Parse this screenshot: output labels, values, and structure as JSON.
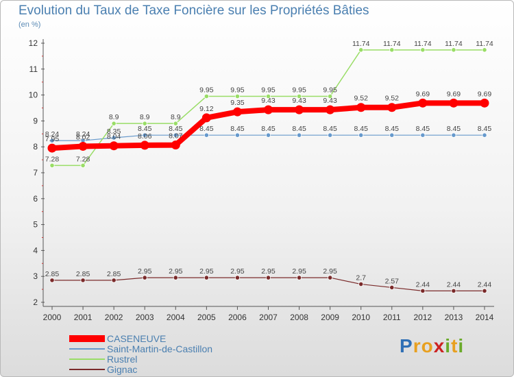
{
  "title": "Evolution du Taux de Taxe Foncière sur les Propriétés Bâties",
  "unit_label": "(en %)",
  "logo": {
    "letters": [
      {
        "ch": "P",
        "color": "#2f6fb5"
      },
      {
        "ch": "r",
        "color": "#e8a020"
      },
      {
        "ch": "o",
        "color": "#e8a020"
      },
      {
        "ch": "x",
        "color": "#cc2222"
      },
      {
        "ch": "i",
        "color": "#6aaa2a"
      },
      {
        "ch": "t",
        "color": "#e8a020"
      },
      {
        "ch": "i",
        "color": "#6aaa2a"
      }
    ]
  },
  "chart_data": {
    "type": "line",
    "title": "Evolution du Taux de Taxe Foncière sur les Propriétés Bâties",
    "ylabel": "(en %)",
    "xlabel": "",
    "x": [
      "2000",
      "2001",
      "2002",
      "2003",
      "2004",
      "2005",
      "2006",
      "2007",
      "2008",
      "2009",
      "2010",
      "2011",
      "2012",
      "2013",
      "2014"
    ],
    "ylim": [
      2,
      12
    ],
    "yticks": [
      "2",
      "3",
      "4",
      "5",
      "6",
      "7",
      "8",
      "9",
      "10",
      "11",
      "12"
    ],
    "grid": false,
    "legend": "bottom-left",
    "series": [
      {
        "name": "CASENEUVE",
        "color": "#ff0000",
        "width": 8,
        "values": [
          7.95,
          8.02,
          8.04,
          8.06,
          8.07,
          9.12,
          9.35,
          9.43,
          9.43,
          9.43,
          9.52,
          9.52,
          9.69,
          9.69,
          9.69
        ],
        "labels": [
          "7.95",
          "8.02",
          "8.04",
          "8.06",
          "8.07",
          "9.12",
          "9.35",
          "9.43",
          "9.43",
          "9.43",
          "9.52",
          "9.52",
          "9.69",
          "9.69",
          "9.69"
        ]
      },
      {
        "name": "Saint-Martin-de-Castillon",
        "color": "#6699cc",
        "width": 1.2,
        "values": [
          8.24,
          8.24,
          8.35,
          8.45,
          8.45,
          8.45,
          8.45,
          8.45,
          8.45,
          8.45,
          8.45,
          8.45,
          8.45,
          8.45,
          8.45
        ],
        "labels": [
          "8.24",
          "8.24",
          "8.35",
          "8.45",
          "8.45",
          "8.45",
          "8.45",
          "8.45",
          "8.45",
          "8.45",
          "8.45",
          "8.45",
          "8.45",
          "8.45",
          "8.45"
        ]
      },
      {
        "name": "Rustrel",
        "color": "#99dd66",
        "width": 1.5,
        "values": [
          7.28,
          7.28,
          8.9,
          8.9,
          8.9,
          9.95,
          9.95,
          9.95,
          9.95,
          9.95,
          11.74,
          11.74,
          11.74,
          11.74,
          11.74
        ],
        "labels": [
          "7.28",
          "7.28",
          "8.9",
          "8.9",
          "8.9",
          "9.95",
          "9.95",
          "9.95",
          "9.95",
          "9.95",
          "11.74",
          "11.74",
          "11.74",
          "11.74",
          "11.74"
        ]
      },
      {
        "name": "Gignac",
        "color": "#7a2a2a",
        "width": 1.2,
        "values": [
          2.85,
          2.85,
          2.85,
          2.95,
          2.95,
          2.95,
          2.95,
          2.95,
          2.95,
          2.95,
          2.7,
          2.57,
          2.44,
          2.44,
          2.44
        ],
        "labels": [
          "2.85",
          "2.85",
          "2.85",
          "2.95",
          "2.95",
          "2.95",
          "2.95",
          "2.95",
          "2.95",
          "2.95",
          "2.7",
          "2.57",
          "2.44",
          "2.44",
          "2.44"
        ]
      }
    ]
  }
}
